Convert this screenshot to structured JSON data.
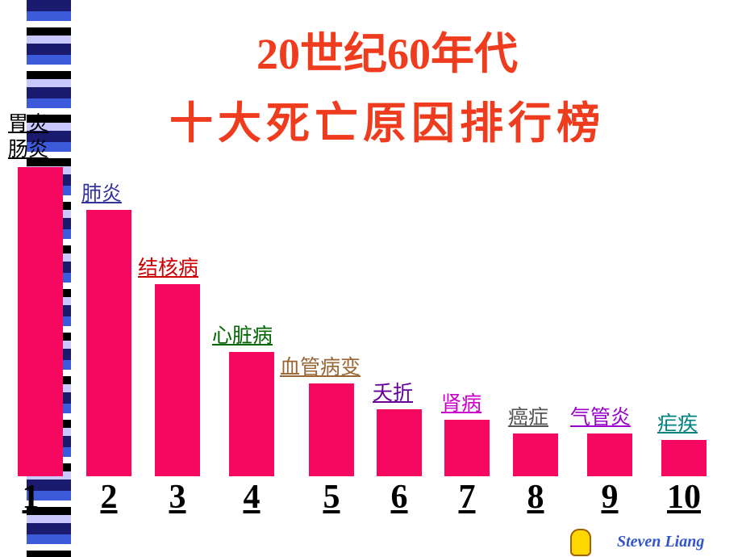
{
  "chart_data": {
    "type": "bar",
    "title": "20世纪60年代",
    "subtitle": "十大死亡原因排行榜",
    "categories": [
      "胃炎\n肠炎",
      "肺炎",
      "结核病",
      "心脏病",
      "血管病变",
      "夭折",
      "肾病",
      "癌症",
      "气管炎",
      "疟疾"
    ],
    "label_colors": [
      "#000000",
      "#333399",
      "#cc0000",
      "#006600",
      "#996633",
      "#660099",
      "#cc00cc",
      "#555555",
      "#9900cc",
      "#008080"
    ],
    "ranks": [
      1,
      2,
      3,
      4,
      5,
      6,
      7,
      8,
      9,
      10
    ],
    "values": [
      383,
      330,
      238,
      154,
      115,
      83,
      70,
      53,
      53,
      45
    ],
    "color": "#f5085f"
  },
  "footer": "Steven Liang"
}
